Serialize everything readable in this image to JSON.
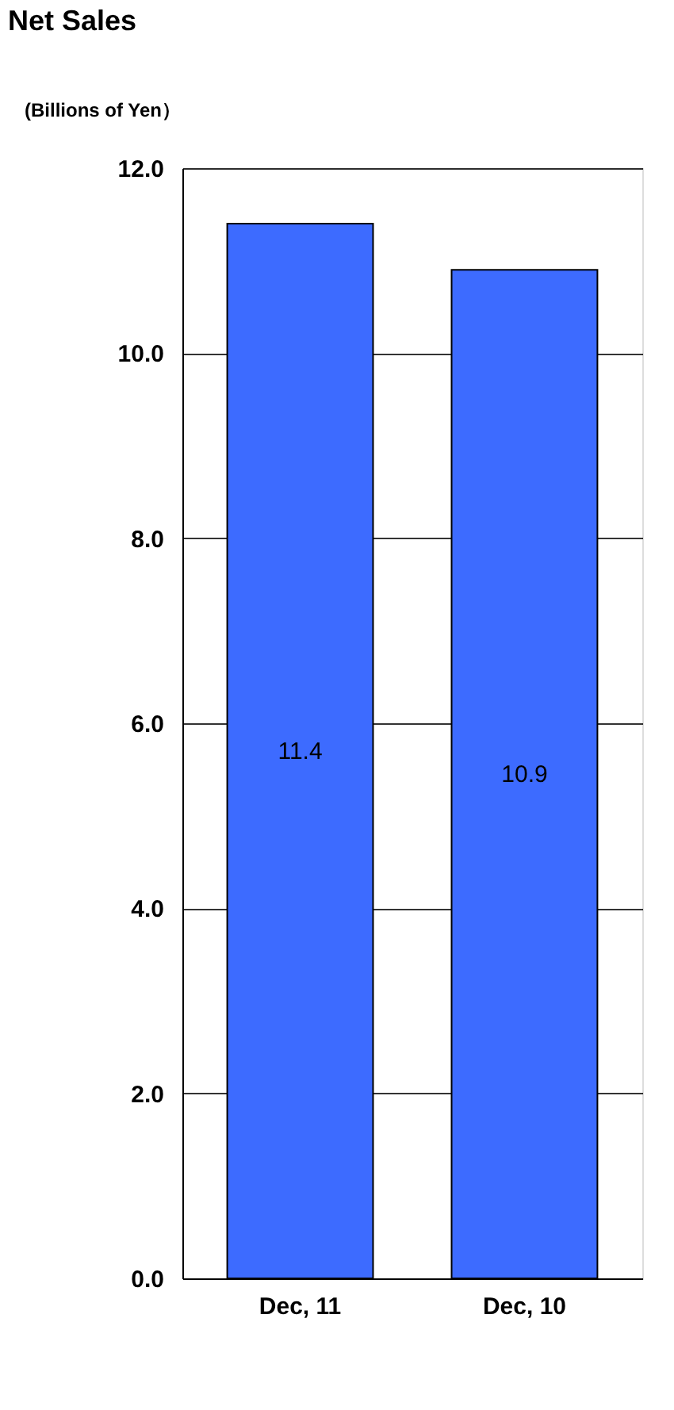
{
  "chart_data": {
    "type": "bar",
    "title": "Net Sales",
    "ylabel": "(Billions of Yen）",
    "categories": [
      "Dec, 11",
      "Dec, 10"
    ],
    "values": [
      11.4,
      10.9
    ],
    "color": "#3d6bff",
    "ylim": [
      0,
      12
    ],
    "yticks": [
      {
        "value": 0,
        "label": "0.0"
      },
      {
        "value": 2,
        "label": "2.0"
      },
      {
        "value": 4,
        "label": "4.0"
      },
      {
        "value": 6,
        "label": "6.0"
      },
      {
        "value": 8,
        "label": "8.0"
      },
      {
        "value": 10,
        "label": "10.0"
      },
      {
        "value": 12,
        "label": "12.0"
      }
    ],
    "grid": "y",
    "data_labels": true
  }
}
